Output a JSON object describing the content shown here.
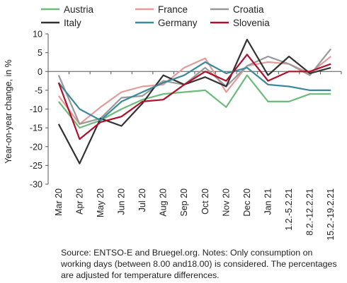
{
  "chart_data": {
    "type": "line",
    "ylabel": "Year-on-year change, in %",
    "xlabel": "",
    "ylim": [
      -30,
      10
    ],
    "yticks": [
      10,
      5,
      0,
      -5,
      -10,
      -15,
      -20,
      -25,
      -30
    ],
    "grid": false,
    "legend_position": "top",
    "categories": [
      "Mar 20",
      "Apr 20",
      "May 20",
      "Jun 20",
      "Jul 20",
      "Aug 20",
      "Sep 20",
      "Oct 20",
      "Nov 20",
      "Dec 20",
      "Jan 21",
      "1.2.-5.2.21",
      "8.2.-12.2.21",
      "15.2.-19.2.21"
    ],
    "series": [
      {
        "name": "Austria",
        "color": "#6dbb7a",
        "values": [
          -8,
          -15,
          -13,
          -10,
          -7.5,
          -6,
          -5.5,
          -5,
          -9.5,
          -1,
          -8,
          -8,
          -6,
          -6
        ]
      },
      {
        "name": "France",
        "color": "#e49a9a",
        "values": [
          -6.5,
          -14,
          -9.5,
          -5.5,
          -4,
          -3.5,
          1,
          3.5,
          -5.5,
          1.5,
          2.5,
          2,
          -0.5,
          4
        ]
      },
      {
        "name": "Croatia",
        "color": "#999999",
        "values": [
          -1,
          -14,
          -12.5,
          -7,
          -6.5,
          -2.5,
          -3.5,
          1,
          -4,
          1.5,
          4,
          2,
          -1,
          6
        ]
      },
      {
        "name": "Italy",
        "color": "#333333",
        "values": [
          -14,
          -24.5,
          -12.5,
          -14.5,
          -8.5,
          -1,
          -3.5,
          -1.5,
          -4,
          8.5,
          -1,
          4,
          -0.5,
          1
        ]
      },
      {
        "name": "Germany",
        "color": "#3a8a9a",
        "values": [
          -3,
          -10,
          -13,
          -8,
          -5.5,
          -3,
          -1,
          2.5,
          -0.5,
          1,
          -3.5,
          -4,
          -5,
          -5
        ]
      },
      {
        "name": "Slovenia",
        "color": "#b0102a",
        "values": [
          -3,
          -18,
          -13.5,
          -12,
          -8,
          -7.5,
          -3.5,
          0,
          -2.5,
          4.5,
          -2.5,
          0,
          0,
          2
        ]
      }
    ]
  },
  "note": "Source: ENTSO-E and Bruegel.org. Notes: Only consumption on working days (between 8.00 and18.00) is considered. The percentages are adjusted for temperature differences."
}
